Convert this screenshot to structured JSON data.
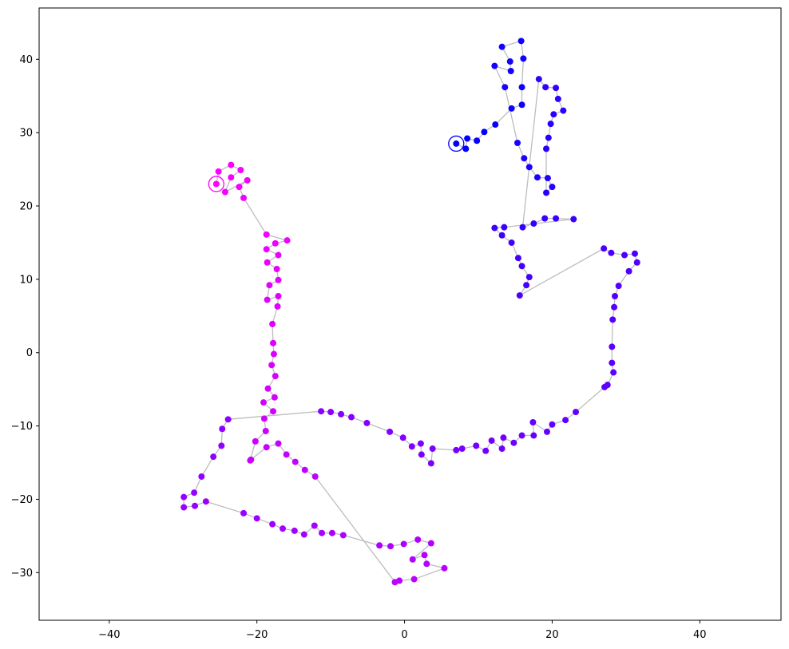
{
  "chart_data": {
    "type": "scatter",
    "title": "",
    "xlabel": "",
    "ylabel": "",
    "xlim": [
      -49.5,
      51
    ],
    "ylim": [
      -36.5,
      47
    ],
    "grid": false,
    "legend": "none",
    "x_ticks": [
      -40,
      -20,
      0,
      20,
      40
    ],
    "y_ticks": [
      -30,
      -20,
      -10,
      0,
      10,
      20,
      30,
      40
    ],
    "x_tick_labels": [
      "−40",
      "−20",
      "0",
      "20",
      "40"
    ],
    "y_tick_labels": [
      "−30",
      "−20",
      "−10",
      "0",
      "10",
      "20",
      "30",
      "40"
    ],
    "colors": {
      "start": "#0000ff",
      "end": "#ff00ff",
      "path": "#bdbdbd"
    },
    "start_point": [
      7,
      28.5
    ],
    "end_point": [
      -25.5,
      23
    ],
    "points": [
      [
        7,
        28.5
      ],
      [
        8.3,
        27.8
      ],
      [
        8.5,
        29.2
      ],
      [
        9.8,
        28.9
      ],
      [
        10.8,
        30.1
      ],
      [
        12.3,
        31.1
      ],
      [
        14.5,
        33.3
      ],
      [
        15.9,
        33.8
      ],
      [
        15.9,
        36.2
      ],
      [
        16.1,
        40.1
      ],
      [
        15.8,
        42.5
      ],
      [
        13.2,
        41.7
      ],
      [
        14.3,
        39.7
      ],
      [
        14.4,
        38.4
      ],
      [
        12.2,
        39.1
      ],
      [
        13.6,
        36.2
      ],
      [
        15.3,
        28.6
      ],
      [
        16.2,
        26.5
      ],
      [
        16.9,
        25.3
      ],
      [
        18.0,
        23.9
      ],
      [
        19.4,
        23.8
      ],
      [
        20.0,
        22.6
      ],
      [
        19.2,
        21.8
      ],
      [
        19.2,
        27.8
      ],
      [
        19.5,
        29.3
      ],
      [
        19.8,
        31.2
      ],
      [
        20.2,
        32.5
      ],
      [
        21.5,
        33.0
      ],
      [
        20.8,
        34.6
      ],
      [
        20.5,
        36.1
      ],
      [
        19.1,
        36.2
      ],
      [
        18.2,
        37.3
      ],
      [
        16.0,
        17.1
      ],
      [
        17.5,
        17.6
      ],
      [
        19.0,
        18.3
      ],
      [
        20.5,
        18.3
      ],
      [
        22.9,
        18.2
      ],
      [
        13.5,
        17.1
      ],
      [
        12.2,
        17.0
      ],
      [
        13.2,
        16.0
      ],
      [
        14.5,
        15.0
      ],
      [
        15.4,
        12.9
      ],
      [
        15.9,
        11.8
      ],
      [
        16.9,
        10.3
      ],
      [
        16.5,
        9.2
      ],
      [
        15.6,
        7.8
      ],
      [
        27.0,
        14.2
      ],
      [
        28.0,
        13.6
      ],
      [
        29.8,
        13.3
      ],
      [
        31.2,
        13.5
      ],
      [
        31.5,
        12.3
      ],
      [
        30.4,
        11.1
      ],
      [
        29.0,
        9.1
      ],
      [
        28.5,
        7.7
      ],
      [
        28.4,
        6.2
      ],
      [
        28.2,
        4.5
      ],
      [
        28.1,
        0.8
      ],
      [
        28.1,
        -1.4
      ],
      [
        28.3,
        -2.7
      ],
      [
        27.5,
        -4.4
      ],
      [
        27.1,
        -4.7
      ],
      [
        23.2,
        -8.1
      ],
      [
        21.8,
        -9.2
      ],
      [
        20.0,
        -9.8
      ],
      [
        19.3,
        -10.8
      ],
      [
        17.4,
        -9.5
      ],
      [
        17.5,
        -11.3
      ],
      [
        15.9,
        -11.3
      ],
      [
        14.8,
        -12.3
      ],
      [
        13.4,
        -11.6
      ],
      [
        13.2,
        -13.1
      ],
      [
        11.8,
        -12.0
      ],
      [
        11.0,
        -13.4
      ],
      [
        9.7,
        -12.7
      ],
      [
        7.8,
        -13.1
      ],
      [
        7.0,
        -13.3
      ],
      [
        3.8,
        -13.1
      ],
      [
        3.6,
        -15.1
      ],
      [
        2.3,
        -13.9
      ],
      [
        2.2,
        -12.4
      ],
      [
        1.0,
        -12.8
      ],
      [
        -0.2,
        -11.6
      ],
      [
        -2.0,
        -10.8
      ],
      [
        -5.1,
        -9.6
      ],
      [
        -7.2,
        -8.8
      ],
      [
        -8.6,
        -8.4
      ],
      [
        -10.0,
        -8.1
      ],
      [
        -11.3,
        -8.0
      ],
      [
        -23.9,
        -9.1
      ],
      [
        -24.7,
        -10.4
      ],
      [
        -24.8,
        -12.7
      ],
      [
        -25.9,
        -14.2
      ],
      [
        -27.5,
        -16.9
      ],
      [
        -28.5,
        -19.1
      ],
      [
        -29.9,
        -19.7
      ],
      [
        -29.9,
        -21.1
      ],
      [
        -28.4,
        -20.9
      ],
      [
        -26.9,
        -20.3
      ],
      [
        -21.8,
        -21.9
      ],
      [
        -20.0,
        -22.6
      ],
      [
        -17.9,
        -23.4
      ],
      [
        -16.5,
        -24.0
      ],
      [
        -14.9,
        -24.3
      ],
      [
        -13.6,
        -24.8
      ],
      [
        -12.2,
        -23.6
      ],
      [
        -11.2,
        -24.6
      ],
      [
        -9.8,
        -24.6
      ],
      [
        -8.3,
        -24.9
      ],
      [
        -3.4,
        -26.3
      ],
      [
        -1.9,
        -26.4
      ],
      [
        -0.1,
        -26.1
      ],
      [
        1.8,
        -25.5
      ],
      [
        3.6,
        -26.0
      ],
      [
        1.1,
        -28.2
      ],
      [
        2.7,
        -27.6
      ],
      [
        3.0,
        -28.8
      ],
      [
        5.4,
        -29.4
      ],
      [
        1.3,
        -30.9
      ],
      [
        -0.7,
        -31.1
      ],
      [
        -1.3,
        -31.3
      ],
      [
        -12.1,
        -16.9
      ],
      [
        -13.5,
        -16.0
      ],
      [
        -14.8,
        -14.9
      ],
      [
        -16.0,
        -13.9
      ],
      [
        -17.1,
        -12.4
      ],
      [
        -18.7,
        -12.9
      ],
      [
        -20.8,
        -14.6
      ],
      [
        -20.9,
        -14.7
      ],
      [
        -20.2,
        -12.1
      ],
      [
        -18.8,
        -10.7
      ],
      [
        -19.0,
        -9.0
      ],
      [
        -17.8,
        -8.0
      ],
      [
        -19.1,
        -6.8
      ],
      [
        -17.6,
        -6.1
      ],
      [
        -18.5,
        -4.9
      ],
      [
        -17.5,
        -3.2
      ],
      [
        -18.0,
        -1.7
      ],
      [
        -17.7,
        -0.2
      ],
      [
        -17.8,
        1.3
      ],
      [
        -17.9,
        3.9
      ],
      [
        -17.2,
        6.3
      ],
      [
        -17.1,
        7.7
      ],
      [
        -18.6,
        7.2
      ],
      [
        -18.3,
        9.2
      ],
      [
        -17.1,
        9.9
      ],
      [
        -17.3,
        11.4
      ],
      [
        -18.6,
        12.3
      ],
      [
        -17.1,
        13.3
      ],
      [
        -18.7,
        14.1
      ],
      [
        -17.5,
        14.9
      ],
      [
        -15.9,
        15.3
      ],
      [
        -18.7,
        16.1
      ],
      [
        -21.8,
        21.1
      ],
      [
        -22.4,
        22.6
      ],
      [
        -21.3,
        23.5
      ],
      [
        -24.3,
        21.9
      ],
      [
        -23.5,
        23.9
      ],
      [
        -22.2,
        24.9
      ],
      [
        -23.5,
        25.6
      ],
      [
        -25.2,
        24.7
      ],
      [
        -25.5,
        23.0
      ]
    ]
  }
}
